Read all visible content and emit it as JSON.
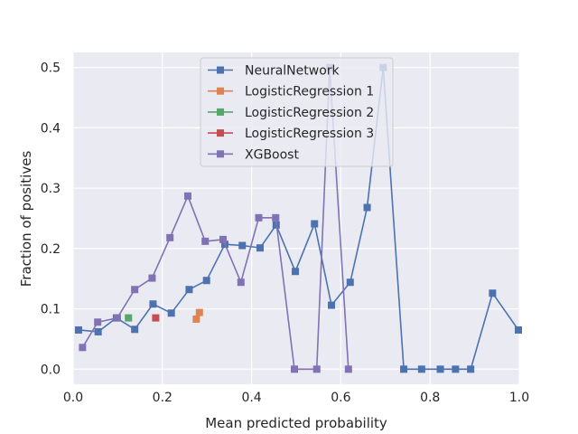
{
  "chart_data": {
    "type": "line",
    "xlabel": "Mean predicted probability",
    "ylabel": "Fraction of positives",
    "xlim": [
      0.0,
      1.0
    ],
    "ylim": [
      -0.025,
      0.525
    ],
    "xticks": [
      "0.0",
      "0.2",
      "0.4",
      "0.6",
      "0.8",
      "1.0"
    ],
    "xtick_values": [
      0.0,
      0.2,
      0.4,
      0.6,
      0.8,
      1.0
    ],
    "yticks": [
      "0.0",
      "0.1",
      "0.2",
      "0.3",
      "0.4",
      "0.5"
    ],
    "ytick_values": [
      0.0,
      0.1,
      0.2,
      0.3,
      0.4,
      0.5
    ],
    "grid": true,
    "legend_position": "top-center",
    "background": "#eaeaf2",
    "series": [
      {
        "name": "NeuralNetwork",
        "color": "#4c72b0",
        "marker": "square",
        "line": true,
        "x": [
          0.012,
          0.056,
          0.097,
          0.138,
          0.179,
          0.22,
          0.26,
          0.299,
          0.34,
          0.379,
          0.419,
          0.455,
          0.498,
          0.541,
          0.579,
          0.621,
          0.659,
          0.695,
          0.741,
          0.781,
          0.823,
          0.857,
          0.891,
          0.94,
          0.998
        ],
        "y": [
          0.065,
          0.062,
          0.085,
          0.066,
          0.108,
          0.093,
          0.132,
          0.147,
          0.207,
          0.205,
          0.201,
          0.239,
          0.162,
          0.241,
          0.106,
          0.144,
          0.268,
          0.5,
          0.0,
          0.0,
          0.0,
          0.0,
          0.0,
          0.126,
          0.065
        ]
      },
      {
        "name": "LogisticRegression 1",
        "color": "#dd8452",
        "marker": "square",
        "line": true,
        "x": [
          0.276,
          0.283
        ],
        "y": [
          0.083,
          0.094
        ]
      },
      {
        "name": "LogisticRegression 2",
        "color": "#55a868",
        "marker": "square",
        "line": true,
        "x": [
          0.124
        ],
        "y": [
          0.085
        ]
      },
      {
        "name": "LogisticRegression 3",
        "color": "#c44e52",
        "marker": "square",
        "line": true,
        "x": [
          0.185
        ],
        "y": [
          0.085
        ]
      },
      {
        "name": "XGBoost",
        "color": "#8172b3",
        "marker": "square",
        "line": true,
        "x": [
          0.021,
          0.055,
          0.099,
          0.138,
          0.177,
          0.217,
          0.257,
          0.296,
          0.336,
          0.376,
          0.416,
          0.454,
          0.496,
          0.546,
          0.575,
          0.617
        ],
        "y": [
          0.036,
          0.078,
          0.085,
          0.132,
          0.151,
          0.218,
          0.287,
          0.212,
          0.215,
          0.144,
          0.251,
          0.251,
          0.0,
          0.0,
          0.5,
          0.0
        ]
      }
    ]
  }
}
